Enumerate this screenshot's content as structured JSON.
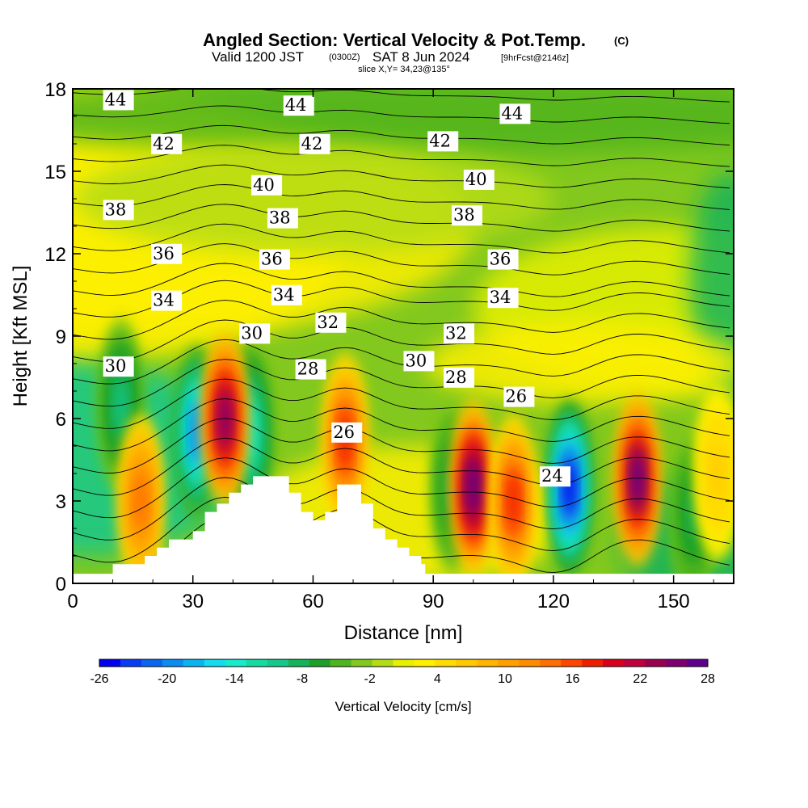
{
  "titles": {
    "main": "Angled Section: Vertical Velocity & Pot.Temp.",
    "copyright": "(C)",
    "valid_prefix": "Valid 1200 JST",
    "valid_utc": "(0300Z)",
    "valid_date": "SAT 8 Jun 2024",
    "forecast": "[9hrFcst@2146z]",
    "slice": "slice X,Y= 34,23@135°"
  },
  "chart_data": {
    "type": "heatmap",
    "xlabel": "Distance [nm]",
    "ylabel": "Height [Kft MSL]",
    "xlim": [
      0,
      165
    ],
    "ylim": [
      0,
      18
    ],
    "x_ticks": [
      "0",
      "30",
      "60",
      "90",
      "120",
      "150"
    ],
    "y_ticks": [
      "0",
      "3",
      "6",
      "9",
      "12",
      "15",
      "18"
    ],
    "colorbar": {
      "label": "Vertical Velocity [cm/s]",
      "range": [
        -26,
        28
      ],
      "tick_labels": [
        "-26",
        "-20",
        "-14",
        "-8",
        "-2",
        "4",
        "10",
        "16",
        "22",
        "28"
      ],
      "colors": [
        "#0000ee",
        "#0a3cf5",
        "#0a66f0",
        "#0a8cf0",
        "#0ab4f0",
        "#14dcf0",
        "#14eccc",
        "#14dca0",
        "#14c88c",
        "#14b45a",
        "#1ea028",
        "#50b41e",
        "#82c81e",
        "#b4dc14",
        "#e6f000",
        "#fff000",
        "#ffdc00",
        "#ffc800",
        "#ffb400",
        "#ffa000",
        "#ff8c00",
        "#ff6e00",
        "#ff4600",
        "#f01e00",
        "#d7001e",
        "#be003c",
        "#9b0050",
        "#7d006e",
        "#5f008c"
      ]
    },
    "updraft_cores": [
      {
        "x": 17,
        "z": 3.0,
        "w": 14
      },
      {
        "x": 38,
        "z": 6.0,
        "w": 26
      },
      {
        "x": 68,
        "z": 5.2,
        "w": 18
      },
      {
        "x": 100,
        "z": 3.5,
        "w": 28
      },
      {
        "x": 110,
        "z": 3.0,
        "w": 18
      },
      {
        "x": 141,
        "z": 3.8,
        "w": 27
      },
      {
        "x": 161,
        "z": 4.0,
        "w": 6
      }
    ],
    "downdraft_cores": [
      {
        "x": 12,
        "z": 6.5,
        "w": -10
      },
      {
        "x": 31,
        "z": 5.5,
        "w": -20
      },
      {
        "x": 44,
        "z": 5.5,
        "w": -14
      },
      {
        "x": 95,
        "z": 3.5,
        "w": -8
      },
      {
        "x": 124,
        "z": 3.5,
        "w": -26
      },
      {
        "x": 155,
        "z": 2.5,
        "w": -8
      }
    ],
    "terrain_profile": {
      "x": [
        10,
        15,
        18,
        21,
        24,
        27,
        30,
        33,
        36,
        39,
        42,
        45,
        48,
        51,
        54,
        57,
        60,
        63,
        66,
        69,
        72,
        75,
        78,
        81,
        84,
        87,
        88
      ],
      "z": [
        0.7,
        0.7,
        1.0,
        1.3,
        1.6,
        1.6,
        1.9,
        2.6,
        2.9,
        3.3,
        3.6,
        3.9,
        3.9,
        3.9,
        3.3,
        2.6,
        2.3,
        2.6,
        3.6,
        3.6,
        2.9,
        2.0,
        1.6,
        1.3,
        1.0,
        0.7,
        0.7
      ]
    },
    "isentropes": {
      "levels": [
        22,
        23,
        24,
        25,
        26,
        27,
        28,
        29,
        30,
        31,
        32,
        33,
        34,
        35,
        36,
        37,
        38,
        39,
        40,
        41,
        42,
        43,
        44,
        45
      ],
      "labeled": [
        {
          "label": "44",
          "x": 8,
          "z": 17.4
        },
        {
          "label": "44",
          "x": 53,
          "z": 17.2
        },
        {
          "label": "44",
          "x": 107,
          "z": 16.9
        },
        {
          "label": "42",
          "x": 20,
          "z": 15.8
        },
        {
          "label": "42",
          "x": 57,
          "z": 15.8
        },
        {
          "label": "42",
          "x": 89,
          "z": 15.9
        },
        {
          "label": "40",
          "x": 45,
          "z": 14.3
        },
        {
          "label": "40",
          "x": 98,
          "z": 14.5
        },
        {
          "label": "38",
          "x": 8,
          "z": 13.4
        },
        {
          "label": "38",
          "x": 49,
          "z": 13.1
        },
        {
          "label": "38",
          "x": 95,
          "z": 13.2
        },
        {
          "label": "36",
          "x": 20,
          "z": 11.8
        },
        {
          "label": "36",
          "x": 47,
          "z": 11.6
        },
        {
          "label": "36",
          "x": 104,
          "z": 11.6
        },
        {
          "label": "34",
          "x": 20,
          "z": 10.1
        },
        {
          "label": "34",
          "x": 50,
          "z": 10.3
        },
        {
          "label": "34",
          "x": 104,
          "z": 10.2
        },
        {
          "label": "32",
          "x": 61,
          "z": 9.3
        },
        {
          "label": "32",
          "x": 93,
          "z": 8.9
        },
        {
          "label": "30",
          "x": 8,
          "z": 7.7
        },
        {
          "label": "30",
          "x": 42,
          "z": 8.9
        },
        {
          "label": "30",
          "x": 83,
          "z": 7.9
        },
        {
          "label": "28",
          "x": 56,
          "z": 7.6
        },
        {
          "label": "28",
          "x": 93,
          "z": 7.3
        },
        {
          "label": "26",
          "x": 65,
          "z": 5.3
        },
        {
          "label": "26",
          "x": 108,
          "z": 6.6
        },
        {
          "label": "24",
          "x": 117,
          "z": 3.7
        }
      ]
    },
    "grid": false,
    "legend": "bottom"
  }
}
